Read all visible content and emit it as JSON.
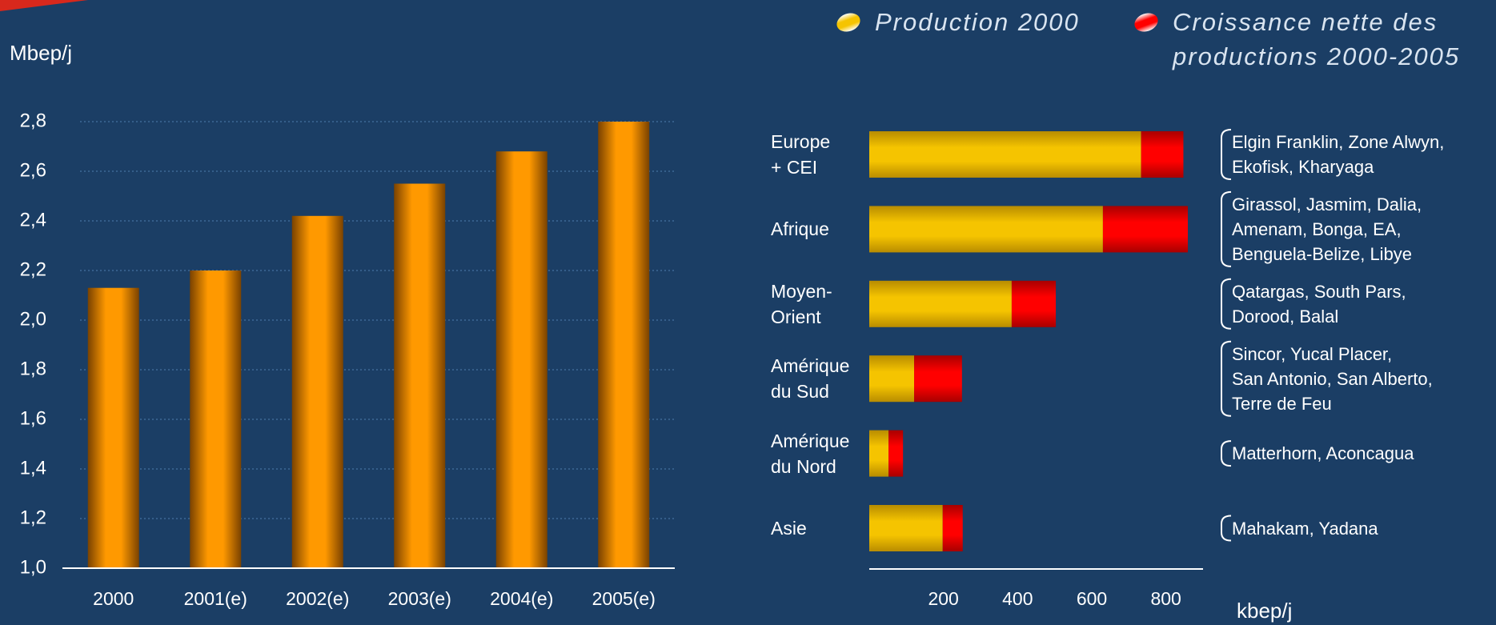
{
  "chart_data": [
    {
      "type": "bar",
      "y_label": "Mbep/j",
      "categories": [
        "2000",
        "2001(e)",
        "2002(e)",
        "2003(e)",
        "2004(e)",
        "2005(e)"
      ],
      "values": [
        2.13,
        2.2,
        2.42,
        2.55,
        2.68,
        2.8
      ],
      "color": "#ff9900",
      "ylim": [
        1.0,
        2.8
      ],
      "yticks": [
        {
          "value": 1.0,
          "label": "1,0"
        },
        {
          "value": 1.2,
          "label": "1,2"
        },
        {
          "value": 1.4,
          "label": "1,4"
        },
        {
          "value": 1.6,
          "label": "1,6"
        },
        {
          "value": 1.8,
          "label": "1,8"
        },
        {
          "value": 2.0,
          "label": "2,0"
        },
        {
          "value": 2.2,
          "label": "2,2"
        },
        {
          "value": 2.4,
          "label": "2,4"
        },
        {
          "value": 2.6,
          "label": "2,6"
        },
        {
          "value": 2.8,
          "label": "2,8"
        }
      ],
      "grid": true
    },
    {
      "type": "barh",
      "categories": [
        "Europe\n+ CEI",
        "Afrique",
        "Moyen-\nOrient",
        "Amérique\ndu Sud",
        "Amérique\ndu Nord",
        "Asie"
      ],
      "series": [
        {
          "name": "Production 2000",
          "color": "#f5c400",
          "values": [
            733,
            630,
            384,
            121,
            52,
            198
          ]
        },
        {
          "name": "Croissance nette des\nproductions 2000-2005",
          "color": "#ff0000",
          "values": [
            114,
            229,
            119,
            129,
            39,
            54
          ]
        }
      ],
      "xlim": [
        0,
        900
      ],
      "xticks": [
        200,
        400,
        600,
        800
      ],
      "x_label": "kbep/j",
      "annotations": [
        "Elgin Franklin, Zone Alwyn,\nEkofisk, Kharyaga",
        "Girassol, Jasmim, Dalia,\nAmenam, Bonga, EA,\nBenguela-Belize, Libye",
        "Qatargas, South Pars,\nDorood, Balal",
        "Sincor, Yucal Placer,\nSan Antonio, San Alberto,\nTerre de Feu",
        "Matterhorn, Aconcagua",
        "Mahakam, Yadana"
      ]
    }
  ]
}
